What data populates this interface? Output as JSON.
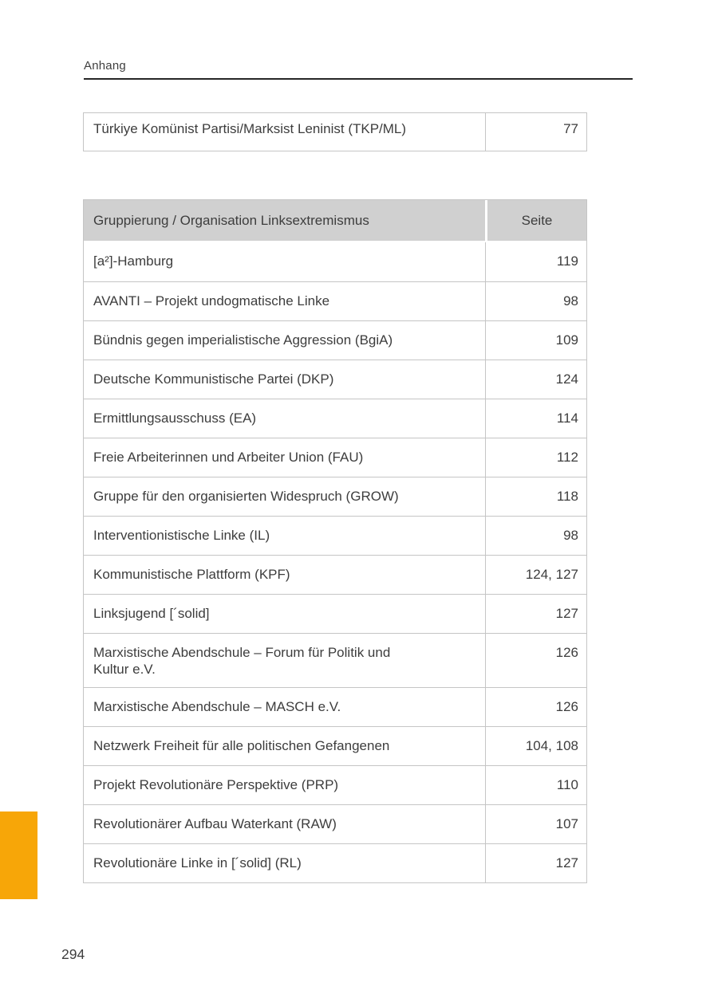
{
  "page": {
    "running_header": "Anhang",
    "page_number": "294",
    "accent_color": "#F7A608"
  },
  "continuation_table": {
    "rows": [
      {
        "name": "Türkiye Komünist Partisi/Marksist Leninist (TKP/ML)",
        "page": "77"
      }
    ]
  },
  "main_table": {
    "header": {
      "name": "Gruppierung / Organisation Linksextremismus",
      "page": "Seite"
    },
    "rows": [
      {
        "name": "[a²]-Hamburg",
        "page": "119"
      },
      {
        "name": "AVANTI – Projekt undogmatische Linke",
        "page": "98"
      },
      {
        "name": "Bündnis gegen imperialistische Aggression (BgiA)",
        "page": "109"
      },
      {
        "name": "Deutsche Kommunistische Partei (DKP)",
        "page": "124"
      },
      {
        "name": "Ermittlungsausschuss (EA)",
        "page": "114"
      },
      {
        "name": "Freie Arbeiterinnen und Arbeiter Union (FAU)",
        "page": "112"
      },
      {
        "name": "Gruppe für den organisierten Widespruch (GROW)",
        "page": "118"
      },
      {
        "name": "Interventionistische Linke (IL)",
        "page": "98"
      },
      {
        "name": "Kommunistische Plattform (KPF)",
        "page": "124, 127"
      },
      {
        "name": "Linksjugend [´solid]",
        "page": "127"
      },
      {
        "name": "Marxistische Abendschule – Forum für Politik und\nKultur e.V.",
        "page": "126"
      },
      {
        "name": "Marxistische Abendschule – MASCH e.V.",
        "page": "126"
      },
      {
        "name": "Netzwerk Freiheit für alle politischen Gefangenen",
        "page": "104, 108"
      },
      {
        "name": "Projekt Revolutionäre Perspektive (PRP)",
        "page": "110"
      },
      {
        "name": "Revolutionärer Aufbau Waterkant (RAW)",
        "page": "107"
      },
      {
        "name": "Revolutionäre Linke in [´solid] (RL)",
        "page": "127"
      }
    ]
  }
}
